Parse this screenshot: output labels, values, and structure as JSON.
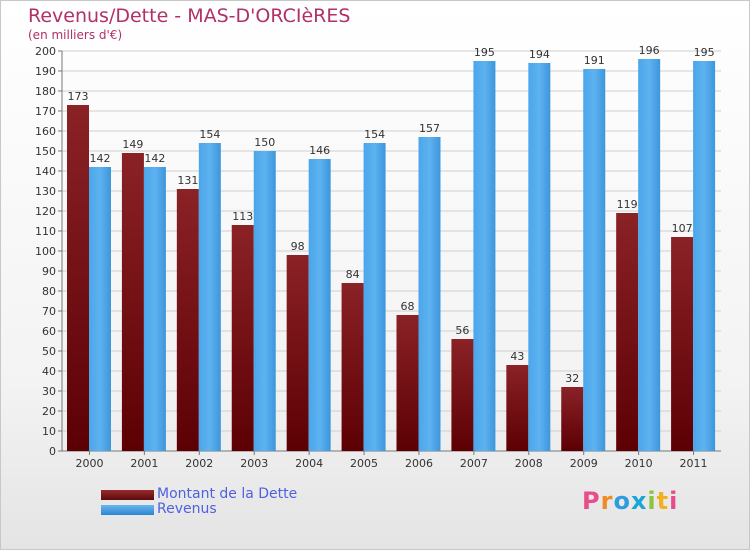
{
  "title": "Revenus/Dette - MAS-D'ORCIèRES",
  "subtitle": "(en milliers d'€)",
  "logo_text": "Proxiti",
  "chart_data": {
    "type": "bar",
    "categories": [
      "2000",
      "2001",
      "2002",
      "2003",
      "2004",
      "2005",
      "2006",
      "2007",
      "2008",
      "2009",
      "2010",
      "2011"
    ],
    "series": [
      {
        "name": "Montant de la Dette",
        "color": "#7a1418",
        "values": [
          173,
          149,
          131,
          113,
          98,
          84,
          68,
          56,
          43,
          32,
          119,
          107
        ]
      },
      {
        "name": "Revenus",
        "color": "#3d9be0",
        "values": [
          142,
          142,
          154,
          150,
          146,
          154,
          157,
          195,
          194,
          191,
          196,
          195
        ]
      }
    ],
    "ylim": [
      0,
      200
    ],
    "ytick_step": 10,
    "grid": true,
    "legend": "bottom-left"
  }
}
